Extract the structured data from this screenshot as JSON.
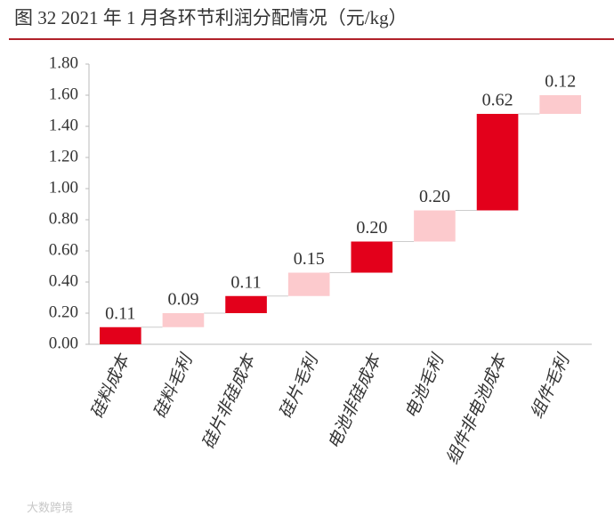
{
  "chart_data": {
    "type": "waterfall",
    "title": "图 32 2021 年 1 月各环节利润分配情况（元/kg）",
    "categories": [
      "硅料成本",
      "硅料毛利",
      "硅片非硅成本",
      "硅片毛利",
      "电池非硅成本",
      "电池毛利",
      "组件非电池成本",
      "组件毛利"
    ],
    "values": [
      0.11,
      0.09,
      0.11,
      0.15,
      0.2,
      0.2,
      0.62,
      0.12
    ],
    "value_labels": [
      "0.11",
      "0.09",
      "0.11",
      "0.15",
      "0.20",
      "0.20",
      "0.62",
      "0.12"
    ],
    "colors": [
      "#e3001b",
      "#fccacd",
      "#e3001b",
      "#fccacd",
      "#e3001b",
      "#fccacd",
      "#e3001b",
      "#fccacd"
    ],
    "ylim": [
      0,
      1.8
    ],
    "yticks": [
      {
        "value": 0,
        "label": "0.00"
      },
      {
        "value": 0.2,
        "label": "0.20"
      },
      {
        "value": 0.4,
        "label": "0.40"
      },
      {
        "value": 0.6,
        "label": "0.60"
      },
      {
        "value": 0.8,
        "label": "0.80"
      },
      {
        "value": 1,
        "label": "1.00"
      },
      {
        "value": 1.2,
        "label": "1.20"
      },
      {
        "value": 1.4,
        "label": "1.40"
      },
      {
        "value": 1.6,
        "label": "1.60"
      },
      {
        "value": 1.8,
        "label": "1.80"
      }
    ],
    "watermark": "大数跨境"
  }
}
